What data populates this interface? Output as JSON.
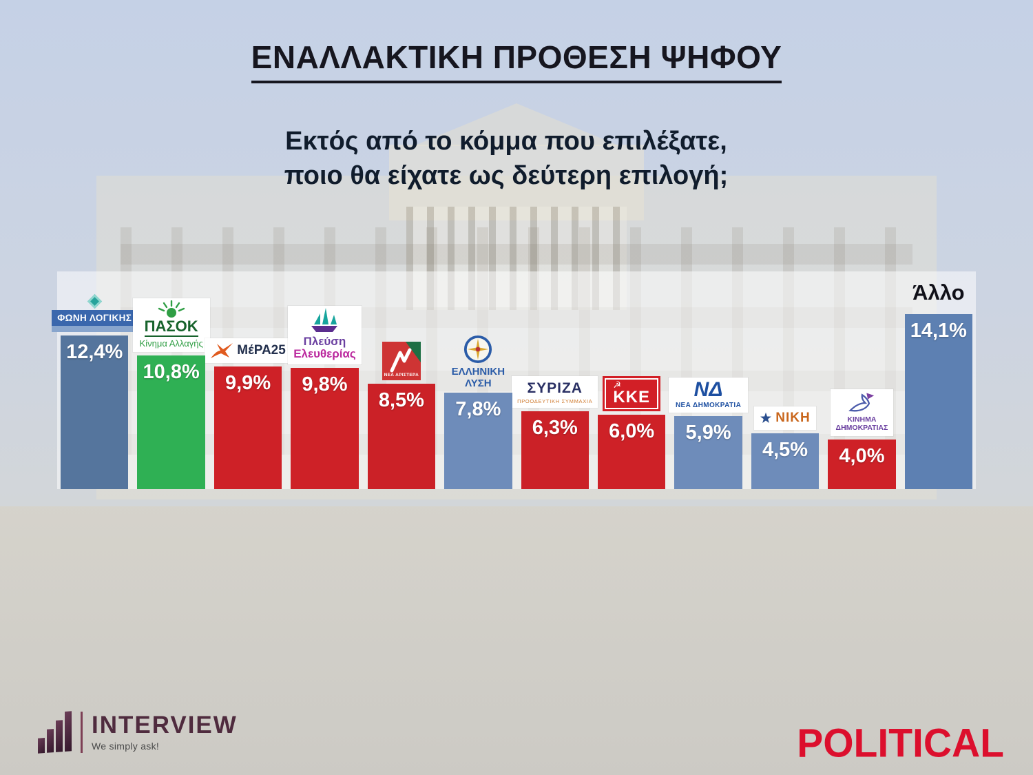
{
  "title": "ΕΝΑΛΛΑΚΤΙΚΗ ΠΡΟΘΕΣΗ ΨΗΦΟΥ",
  "subtitle": [
    "Εκτός από το κόμμα που επιλέξατε,",
    "ποιο θα είχατε ως δεύτερη επιλογή;"
  ],
  "chart_data": {
    "type": "bar",
    "title": "ΕΝΑΛΛΑΚΤΙΚΗ ΠΡΟΘΕΣΗ ΨΗΦΟΥ",
    "unit": "percent",
    "ylim": [
      0,
      15
    ],
    "grid": false,
    "legend": "none",
    "categories": [
      "ΦΩΝΗ ΛΟΓΙΚΗΣ",
      "ΠΑΣΟΚ Κίνημα Αλλαγής",
      "ΜέΡΑ25",
      "Πλεύση Ελευθερίας",
      "ΝΕΑ ΑΡΙΣΤΕΡΑ",
      "ΕΛΛΗΝΙΚΗ ΛΥΣΗ",
      "ΣΥΡΙΖΑ",
      "ΚΚΕ",
      "ΝΕΑ ΔΗΜΟΚΡΑΤΙΑ",
      "ΝΙΚΗ",
      "ΚΙΝΗΜΑ ΔΗΜΟΚΡΑΤΙΑΣ",
      "Άλλο"
    ],
    "values": [
      12.4,
      10.8,
      9.9,
      9.8,
      8.5,
      7.8,
      6.3,
      6.0,
      5.9,
      4.5,
      4.0,
      14.1
    ],
    "bars": [
      {
        "id": "foni-logikis",
        "party": "ΦΩΝΗ ΛΟΓΙΚΗΣ",
        "value": 12.4,
        "label": "12,4%",
        "color": "#55759d",
        "logo": {
          "kind": "foni",
          "title": "ΦΩΝΗ ΛΟΓΙΚΗΣ",
          "icon": "diamond"
        }
      },
      {
        "id": "pasok",
        "party": "ΠΑΣΟΚ Κίνημα Αλλαγής",
        "value": 10.8,
        "label": "10,8%",
        "color": "#2fb054",
        "logo": {
          "kind": "pasok",
          "title": "ΠΑΣΟΚ",
          "subtitle": "Κίνημα Αλλαγής",
          "icon": "green-sun"
        }
      },
      {
        "id": "mera25",
        "party": "ΜέΡΑ25",
        "value": 9.9,
        "label": "9,9%",
        "color": "#ce2127",
        "logo": {
          "kind": "mera",
          "title": "ΜέΡΑ25",
          "icon": "bird"
        }
      },
      {
        "id": "plefsi-eleftherias",
        "party": "Πλεύση Ελευθερίας",
        "value": 9.8,
        "label": "9,8%",
        "color": "#ce2127",
        "logo": {
          "kind": "plefsi",
          "line1": "Πλεύση",
          "line2": "Ελευθερίας",
          "icon": "sailboat"
        }
      },
      {
        "id": "nea-aristera",
        "party": "ΝΕΑ ΑΡΙΣΤΕΡΑ",
        "value": 8.5,
        "label": "8,5%",
        "color": "#cb2127",
        "logo": {
          "kind": "nearistera",
          "title": "ΝΕΑ ΑΡΙΣΤΕΡΑ",
          "icon": "red-green-square"
        }
      },
      {
        "id": "elliniki-lysi",
        "party": "ΕΛΛΗΝΙΚΗ ΛΥΣΗ",
        "value": 7.8,
        "label": "7,8%",
        "color": "#6e8cba",
        "logo": {
          "kind": "lysi",
          "line1": "ΕΛΛΗΝΙΚΗ",
          "line2": "ΛΥΣΗ",
          "icon": "compass"
        }
      },
      {
        "id": "syriza",
        "party": "ΣΥΡΙΖΑ",
        "value": 6.3,
        "label": "6,3%",
        "color": "#cb2127",
        "logo": {
          "kind": "syriza",
          "title": "ΣΥΡΙΖΑ",
          "subtitle": "ΠΡΟΟΔΕΥΤΙΚΗ ΣΥΜΜΑΧΙΑ"
        }
      },
      {
        "id": "kke",
        "party": "ΚΚΕ",
        "value": 6.0,
        "label": "6,0%",
        "color": "#ce2127",
        "logo": {
          "kind": "kke",
          "title": "ΚΚΕ",
          "icon": "hammer-sickle"
        }
      },
      {
        "id": "nea-dimokratia",
        "party": "ΝΕΑ ΔΗΜΟΚΡΑΤΙΑ",
        "value": 5.9,
        "label": "5,9%",
        "color": "#6e8cba",
        "logo": {
          "kind": "nd",
          "mark": "ΝΔ",
          "title": "ΝΕΑ ΔΗΜΟΚΡΑΤΙΑ"
        }
      },
      {
        "id": "niki",
        "party": "ΝΙΚΗ",
        "value": 4.5,
        "label": "4,5%",
        "color": "#6e8cba",
        "logo": {
          "kind": "niki",
          "title": "ΝΙΚΗ",
          "icon": "star"
        }
      },
      {
        "id": "kinima-dimokratias",
        "party": "ΚΙΝΗΜΑ ΔΗΜΟΚΡΑΤΙΑΣ",
        "value": 4.0,
        "label": "4,0%",
        "color": "#ce2127",
        "logo": {
          "kind": "kinima",
          "line1": "ΚΙΝΗΜΑ",
          "line2": "ΔΗΜΟΚΡΑΤΙΑΣ",
          "icon": "dove"
        }
      },
      {
        "id": "allo",
        "party": "Άλλο",
        "value": 14.1,
        "label": "14,1%",
        "color": "#5d80b2",
        "logo": {
          "kind": "text",
          "title": "Άλλο"
        }
      }
    ]
  },
  "footer": {
    "interview_name": "INTERVIEW",
    "interview_tagline": "We simply ask!",
    "political_name": "POLITICAL"
  },
  "colors": {
    "blue_bar": "#6e8cba",
    "dark_blue_bar": "#55759d",
    "red_bar": "#ce2127",
    "green_bar": "#2fb054",
    "political_red": "#dc0f2d",
    "interview_maroon": "#4f2b3e",
    "panel_overlay": "rgba(255,255,255,0.52)"
  }
}
